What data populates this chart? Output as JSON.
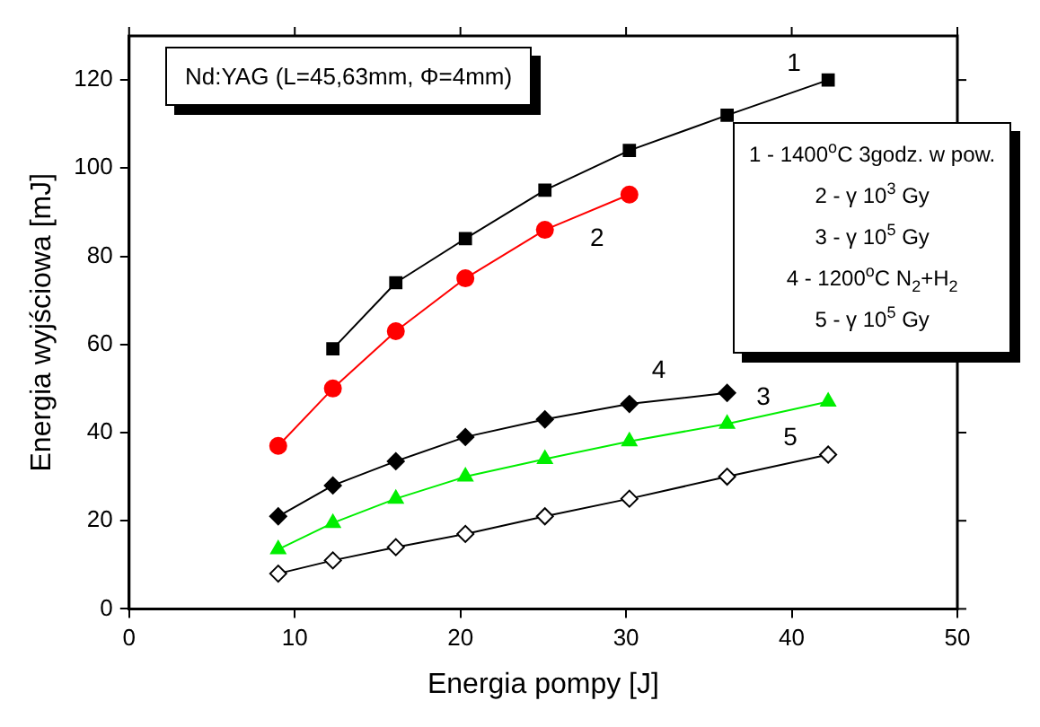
{
  "chart_data": {
    "type": "line",
    "xlabel": "Energia pompy [J]",
    "ylabel": "Energia wyjściowa [mJ]",
    "xlim": [
      0,
      50
    ],
    "xticks": [
      0,
      10,
      20,
      30,
      40,
      50
    ],
    "ylim": [
      0,
      130
    ],
    "yticks": [
      0,
      20,
      40,
      60,
      80,
      100,
      120
    ],
    "grid": false,
    "annotations": [
      "Nd:YAG (L=45,63mm, Φ=4mm)",
      "1 - 1400$^{o}$C 3godz. w pow.",
      "2 - γ 10$^{3}$ Gy",
      "3 - γ 10$^{5}$ Gy",
      "4 - 1200$^{o}$C N$_{2}$+H$_{2}$",
      "5 - γ 10$^{5}$ Gy"
    ],
    "series": [
      {
        "name": "1",
        "color": "#000000",
        "marker": "square",
        "x": [
          12.3,
          16.1,
          20.3,
          25.1,
          30.2,
          36.1,
          42.2
        ],
        "values": [
          59,
          74,
          84,
          95,
          104,
          112,
          120
        ]
      },
      {
        "name": "2",
        "color": "#ff0000",
        "marker": "circle",
        "x": [
          9,
          12.3,
          16.1,
          20.3,
          25.1,
          30.2
        ],
        "values": [
          37,
          50,
          63,
          75,
          86,
          94
        ]
      },
      {
        "name": "3",
        "color": "#00ee00",
        "marker": "triangle",
        "x": [
          9,
          12.3,
          16.1,
          20.3,
          25.1,
          30.2,
          36.1,
          42.2
        ],
        "values": [
          13.5,
          19.5,
          25,
          30,
          34,
          38,
          42,
          47
        ]
      },
      {
        "name": "4",
        "color": "#000000",
        "marker": "diamond",
        "x": [
          9,
          12.3,
          16.1,
          20.3,
          25.1,
          30.2,
          36.1
        ],
        "values": [
          21,
          28,
          33.5,
          39,
          43,
          46.5,
          49
        ]
      },
      {
        "name": "5",
        "color": "#000000",
        "marker": "diamond",
        "x": [
          9,
          12.3,
          16.1,
          20.3,
          25.1,
          30.2,
          36.1,
          42.2
        ],
        "values": [
          8,
          11,
          14,
          17,
          21,
          25,
          30,
          35
        ]
      }
    ]
  }
}
